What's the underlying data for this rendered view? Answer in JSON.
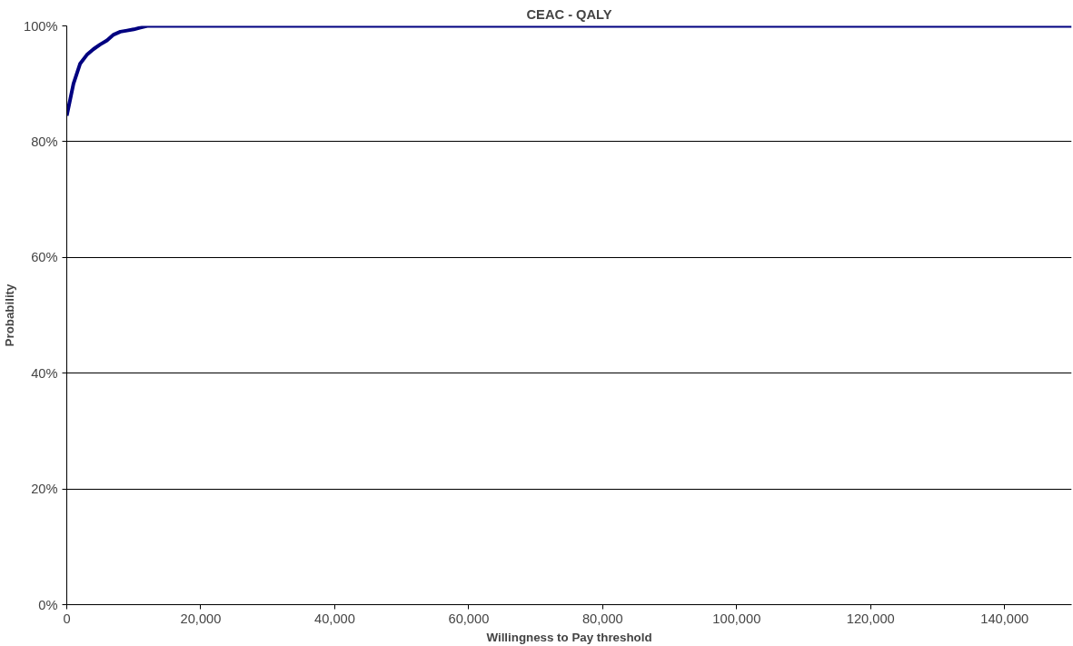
{
  "chart_data": {
    "type": "line",
    "title": "CEAC - QALY",
    "xlabel": "Willingness to Pay threshold",
    "ylabel": "Probability",
    "x": [
      0,
      1000,
      2000,
      3000,
      4000,
      5000,
      6000,
      7000,
      8000,
      9000,
      10000,
      11000,
      12000,
      20000,
      40000,
      60000,
      80000,
      100000,
      120000,
      150000
    ],
    "series": [
      {
        "color": "#000080",
        "values": [
          84.5,
          90,
          93.5,
          95,
          96,
          96.8,
          97.5,
          98.5,
          99,
          99.2,
          99.4,
          99.7,
          100,
          100,
          100,
          100,
          100,
          100,
          100,
          100
        ]
      }
    ],
    "xlim": [
      0,
      150000
    ],
    "ylim": [
      0,
      100
    ],
    "xticks": [
      {
        "value": 0,
        "label": "0"
      },
      {
        "value": 20000,
        "label": "20,000"
      },
      {
        "value": 40000,
        "label": "40,000"
      },
      {
        "value": 60000,
        "label": "60,000"
      },
      {
        "value": 80000,
        "label": "80,000"
      },
      {
        "value": 100000,
        "label": "100,000"
      },
      {
        "value": 120000,
        "label": "120,000"
      },
      {
        "value": 140000,
        "label": "140,000"
      }
    ],
    "yticks": [
      {
        "value": 0,
        "label": "0%"
      },
      {
        "value": 20,
        "label": "20%"
      },
      {
        "value": 40,
        "label": "40%"
      },
      {
        "value": 60,
        "label": "60%"
      },
      {
        "value": 80,
        "label": "80%"
      },
      {
        "value": 100,
        "label": "100%"
      }
    ],
    "grid": "y",
    "marker": "none",
    "line_style": "solid"
  }
}
